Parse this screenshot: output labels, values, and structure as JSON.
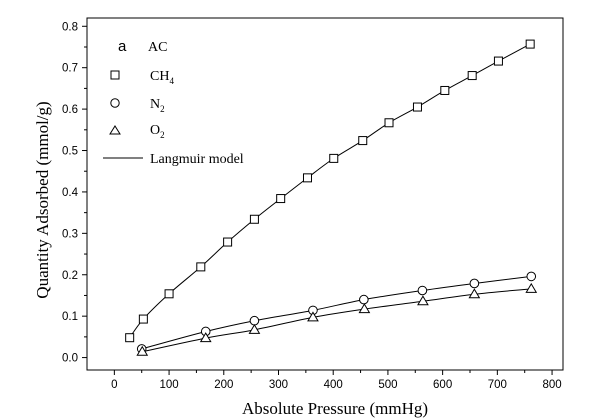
{
  "chart_data": {
    "type": "scatter",
    "panel_label": "a",
    "panel_title": "AC",
    "xlabel": "Absolute Pressure (mmHg)",
    "ylabel": "Quantity Adsorbed (mmol/g)",
    "xlim": [
      -50,
      820
    ],
    "ylim": [
      -0.03,
      0.82
    ],
    "xticks": [
      0,
      100,
      200,
      300,
      400,
      500,
      600,
      700,
      800
    ],
    "yticks": [
      0.0,
      0.1,
      0.2,
      0.3,
      0.4,
      0.5,
      0.6,
      0.7,
      0.8
    ],
    "grid": false,
    "legend_position": "top-left",
    "series": [
      {
        "name": "CH",
        "name_sub": "4",
        "marker": "square",
        "x": [
          28,
          53,
          100,
          158,
          207,
          256,
          304,
          353,
          401,
          454,
          502,
          554,
          604,
          654,
          702,
          760
        ],
        "y": [
          0.048,
          0.093,
          0.154,
          0.219,
          0.279,
          0.334,
          0.384,
          0.434,
          0.481,
          0.524,
          0.567,
          0.605,
          0.645,
          0.681,
          0.716,
          0.757
        ]
      },
      {
        "name": "N",
        "name_sub": "2",
        "marker": "circle",
        "x": [
          50,
          167,
          256,
          363,
          456,
          563,
          658,
          762
        ],
        "y": [
          0.021,
          0.063,
          0.089,
          0.114,
          0.14,
          0.162,
          0.179,
          0.196
        ]
      },
      {
        "name": "O",
        "name_sub": "2",
        "marker": "triangle",
        "x": [
          51,
          167,
          256,
          363,
          457,
          564,
          658,
          762
        ],
        "y": [
          0.014,
          0.047,
          0.067,
          0.097,
          0.117,
          0.136,
          0.153,
          0.166
        ]
      }
    ],
    "model_line": {
      "name": "Langmuir model"
    }
  }
}
